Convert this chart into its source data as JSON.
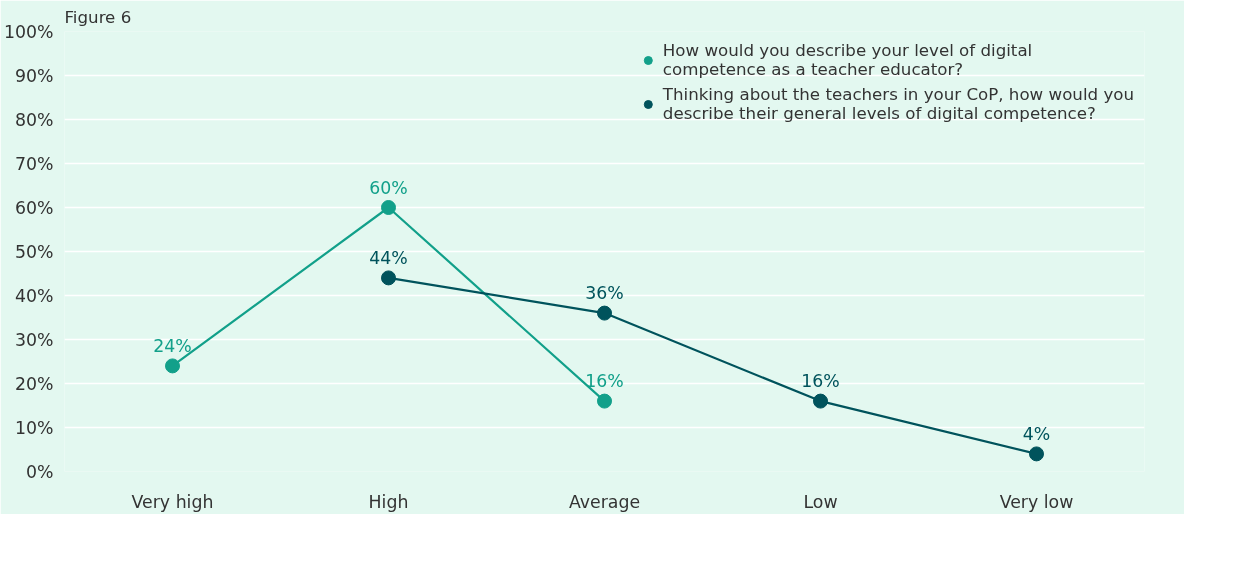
{
  "chart_data": {
    "type": "line",
    "title": "Figure 6",
    "categories": [
      "Very high",
      "High",
      "Average",
      "Low",
      "Very low"
    ],
    "series": [
      {
        "name": "How would you describe your level of digital competence as a teacher educator?",
        "color": "#12a08a",
        "values": [
          24,
          60,
          16,
          null,
          null
        ],
        "value_labels": [
          "24%",
          "60%",
          "16%",
          null,
          null
        ]
      },
      {
        "name": "Thinking about the teachers in your CoP, how would you describe their general levels of digital competence?",
        "color": "#00535c",
        "values": [
          null,
          44,
          36,
          16,
          4
        ],
        "value_labels": [
          null,
          "44%",
          "36%",
          "16%",
          "4%"
        ]
      }
    ],
    "ylim": [
      0,
      100
    ],
    "yticks": [
      {
        "value": 0,
        "label": "0%"
      },
      {
        "value": 10,
        "label": "10%"
      },
      {
        "value": 20,
        "label": "20%"
      },
      {
        "value": 30,
        "label": "30%"
      },
      {
        "value": 40,
        "label": "40%"
      },
      {
        "value": 50,
        "label": "50%"
      },
      {
        "value": 60,
        "label": "60%"
      },
      {
        "value": 70,
        "label": "70%"
      },
      {
        "value": 80,
        "label": "80%"
      },
      {
        "value": 90,
        "label": "90%"
      },
      {
        "value": 100,
        "label": "100%"
      }
    ],
    "grid": "y",
    "legend": "top right",
    "marker": "circle",
    "line_style": "solid"
  }
}
